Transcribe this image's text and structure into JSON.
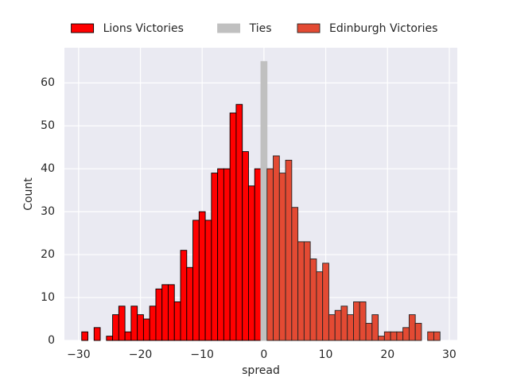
{
  "chart_data": {
    "type": "histogram",
    "xlabel": "spread",
    "ylabel": "Count",
    "xlim": [
      -32.3,
      31.3
    ],
    "ylim": [
      0,
      68.2
    ],
    "xticks": [
      {
        "value": -30,
        "label": "−30"
      },
      {
        "value": -20,
        "label": "−20"
      },
      {
        "value": -10,
        "label": "−10"
      },
      0,
      10,
      20,
      30
    ],
    "yticks": [
      0,
      10,
      20,
      30,
      40,
      50,
      60
    ],
    "grid": true,
    "legend": "upper center outside",
    "series": [
      {
        "name": "Lions Victories",
        "color": "#ff0000",
        "edgecolor": "#000000",
        "bins": [
          -29.5,
          -28.5,
          -27.5,
          -26.5,
          -25.5,
          -24.5,
          -23.5,
          -22.5,
          -21.5,
          -20.5,
          -19.5,
          -18.5,
          -17.5,
          -16.5,
          -15.5,
          -14.5,
          -13.5,
          -12.5,
          -11.5,
          -10.5,
          -9.5,
          -8.5,
          -7.5,
          -6.5,
          -5.5,
          -4.5,
          -3.5,
          -2.5,
          -1.5,
          -0.5
        ],
        "values": [
          2,
          0,
          3,
          0,
          1,
          6,
          8,
          2,
          8,
          6,
          5,
          8,
          12,
          13,
          13,
          9,
          21,
          17,
          28,
          30,
          28,
          39,
          40,
          40,
          53,
          55,
          44,
          36,
          40
        ]
      },
      {
        "name": "Ties",
        "color": "#c0c0c0",
        "edgecolor": "#c0c0c0",
        "bins": [
          -0.5,
          0.5
        ],
        "values": [
          65
        ]
      },
      {
        "name": "Edinburgh Victories",
        "color": "#e34a33",
        "edgecolor": "#222222",
        "bins": [
          0.5,
          1.5,
          2.5,
          3.5,
          4.5,
          5.5,
          6.5,
          7.5,
          8.5,
          9.5,
          10.5,
          11.5,
          12.5,
          13.5,
          14.5,
          15.5,
          16.5,
          17.5,
          18.5,
          19.5,
          20.5,
          21.5,
          22.5,
          23.5,
          24.5,
          25.5,
          26.5,
          27.5,
          28.5
        ],
        "values": [
          40,
          43,
          39,
          42,
          31,
          23,
          23,
          19,
          16,
          18,
          6,
          7,
          8,
          6,
          9,
          9,
          4,
          6,
          1,
          2,
          2,
          2,
          3,
          6,
          4,
          0,
          2,
          2
        ]
      }
    ]
  }
}
